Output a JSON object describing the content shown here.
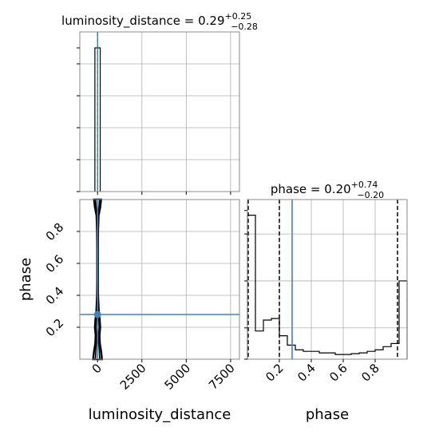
{
  "chart_data": {
    "type": "corner",
    "parameters": [
      "luminosity_distance",
      "phase"
    ],
    "truth_color": "#4682b4",
    "panels": [
      {
        "id": "luminosity_distance-marginal",
        "type": "histogram",
        "parameter": "luminosity_distance",
        "title_prefix": "luminosity_distance = ",
        "title_median": "0.29",
        "title_plus": "+0.25",
        "title_minus": "−0.28",
        "xlim": [
          -1000,
          8000
        ],
        "bin_edges": [
          -150,
          0,
          150
        ],
        "counts": [
          1,
          1
        ],
        "quantiles": [
          0.01,
          0.29,
          0.54
        ],
        "truth": 0.29,
        "grid": true
      },
      {
        "id": "phase-marginal",
        "type": "histogram",
        "parameter": "phase",
        "title_prefix": "phase = ",
        "title_median": "0.20",
        "title_plus": "+0.74",
        "title_minus": "−0.20",
        "xlim": [
          0,
          1
        ],
        "ylim": [
          0,
          1.02
        ],
        "bin_edges": [
          0,
          0.05,
          0.1,
          0.15,
          0.2,
          0.25,
          0.3,
          0.35,
          0.4,
          0.45,
          0.5,
          0.55,
          0.6,
          0.65,
          0.7,
          0.75,
          0.8,
          0.85,
          0.9,
          0.95,
          1.0
        ],
        "counts": [
          0.92,
          0.18,
          0.25,
          0.26,
          0.15,
          0.09,
          0.06,
          0.05,
          0.05,
          0.04,
          0.04,
          0.03,
          0.03,
          0.035,
          0.04,
          0.05,
          0.06,
          0.08,
          0.1,
          0.5
        ],
        "quantiles": [
          0.005,
          0.2,
          0.94
        ],
        "truth": 0.28,
        "yticks": [
          0.2,
          0.5,
          0.8
        ],
        "grid": true
      },
      {
        "id": "joint",
        "type": "contour2d",
        "x_parameter": "luminosity_distance",
        "y_parameter": "phase",
        "xlim": [
          -1000,
          8000
        ],
        "ylim": [
          0,
          1
        ],
        "xticks": [
          0,
          2500,
          5000,
          7500
        ],
        "xtick_labels": [
          "0",
          "2500",
          "5000",
          "7500"
        ],
        "yticks": [
          0.2,
          0.4,
          0.6,
          0.8
        ],
        "ytick_labels": [
          "0.2",
          "0.4",
          "0.6",
          "0.8"
        ],
        "xlabel": "luminosity_distance",
        "ylabel": "phase",
        "contour_halfwidths_data": [
          {
            "y": [
              0.0,
              0.05,
              0.1,
              0.15,
              0.2,
              0.25,
              0.3,
              0.35,
              0.4,
              0.5,
              0.6,
              0.7,
              0.8,
              0.9,
              0.95,
              1.0
            ],
            "w": [
              250,
              200,
              130,
              110,
              150,
              120,
              70,
              50,
              30,
              20,
              20,
              20,
              30,
              60,
              150,
              200
            ]
          },
          {
            "y": [
              0.0,
              0.05,
              0.1,
              0.15,
              0.2,
              0.25,
              0.3,
              0.35,
              0.4,
              0.5,
              0.6,
              0.7,
              0.8,
              0.9,
              0.95,
              1.0
            ],
            "w": [
              120,
              100,
              70,
              60,
              90,
              70,
              40,
              30,
              15,
              10,
              10,
              10,
              15,
              30,
              80,
              110
            ]
          }
        ],
        "truth": {
          "x": 0.29,
          "y": 0.28
        },
        "grid": true
      }
    ],
    "phase_xaxis": {
      "xticks": [
        0.2,
        0.4,
        0.6,
        0.8
      ],
      "xtick_labels": [
        "0.2",
        "0.4",
        "0.6",
        "0.8"
      ],
      "xlabel": "phase"
    }
  }
}
